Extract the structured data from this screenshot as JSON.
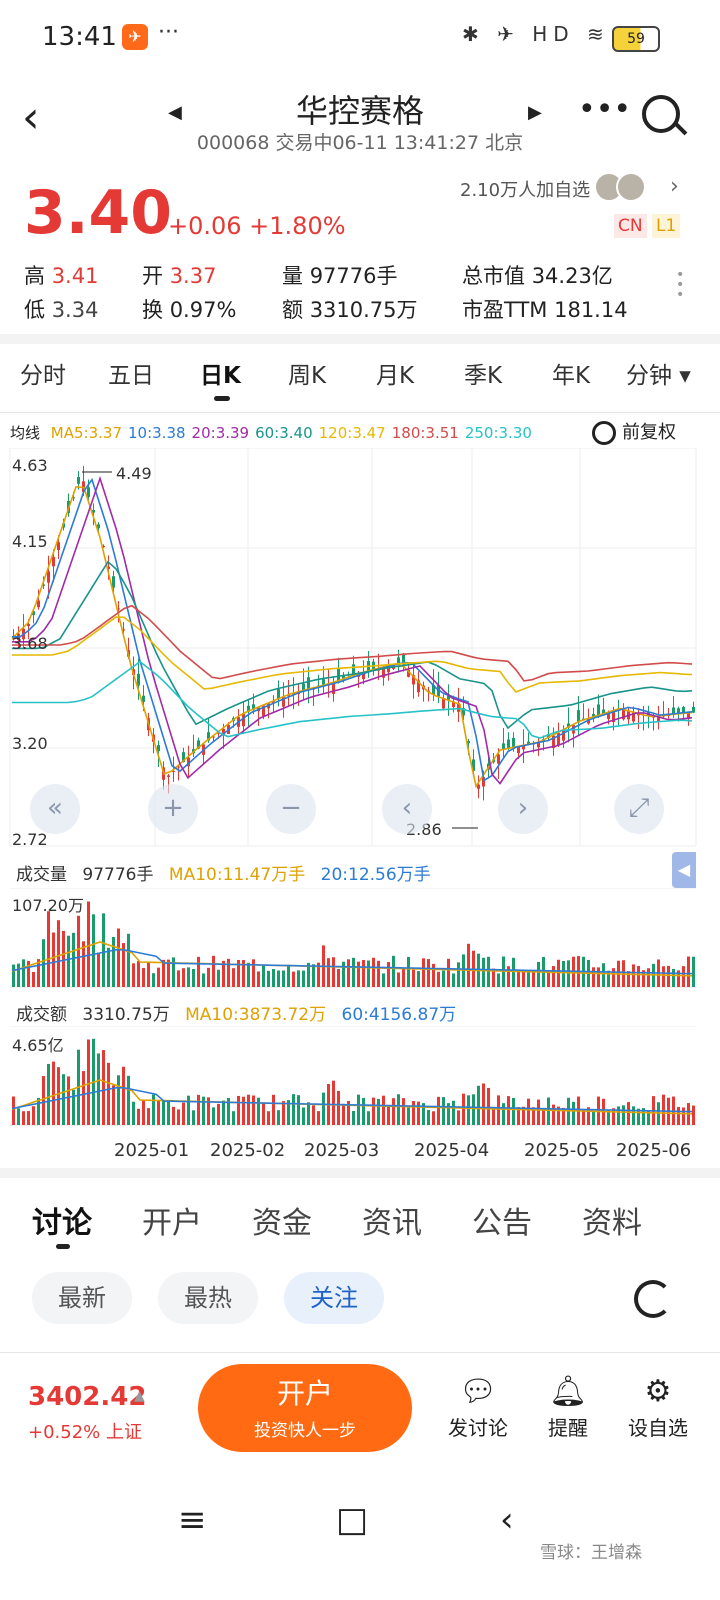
{
  "status_bar": {
    "time": "13:41",
    "dots": "···",
    "icons": "✱ ✈ HD ≋",
    "battery": "59"
  },
  "header": {
    "title": "华控赛格",
    "subtitle": "000068 交易中06-11 13:41:27 北京"
  },
  "quote": {
    "price": "3.40",
    "change": "+0.06 +1.80%",
    "followers": "2.10万人加自选",
    "tag_cn": "CN",
    "tag_l1": "L1",
    "high_label": "高",
    "high": "3.41",
    "low_label": "低",
    "low": "3.34",
    "open_label": "开",
    "open": "3.37",
    "turnover_label": "换",
    "turnover": "0.97%",
    "volume_label": "量",
    "volume": "97776手",
    "amount_label": "额",
    "amount": "3310.75万",
    "mktcap_label": "总市值",
    "mktcap": "34.23亿",
    "pe_label": "市盈TTM",
    "pe": "181.14"
  },
  "period_tabs": [
    "分时",
    "五日",
    "日K",
    "周K",
    "月K",
    "季K",
    "年K",
    "分钟 ▾"
  ],
  "ma_bar": {
    "label": "均线",
    "items": [
      {
        "text": "MA5:3.37",
        "color": "#e0a100"
      },
      {
        "text": "10:3.38",
        "color": "#2b7bd6"
      },
      {
        "text": "20:3.39",
        "color": "#a02aa8"
      },
      {
        "text": "60:3.40",
        "color": "#18948a"
      },
      {
        "text": "120:3.47",
        "color": "#e6b800"
      },
      {
        "text": "180:3.51",
        "color": "#d24b4b"
      },
      {
        "text": "250:3.30",
        "color": "#27c2c8"
      }
    ],
    "adjust": "前复权"
  },
  "kline_axis": {
    "y_top": "4.63",
    "y_2": "4.15",
    "y_3": "3.68",
    "y_4": "3.20",
    "y_bottom": "2.72",
    "max_note": "4.49",
    "min_note": "2.86"
  },
  "zoom_controls": {
    "rewind": "«",
    "plus": "+",
    "minus": "−",
    "left": "‹",
    "right": "›",
    "fullscreen": "⤢"
  },
  "volume_header": {
    "label": "成交量",
    "value": "97776手",
    "ma10": "MA10:11.47万手",
    "ma20": "20:12.56万手",
    "axis_max": "107.20万"
  },
  "amount_header": {
    "label": "成交额",
    "value": "3310.75万",
    "ma10": "MA10:3873.72万",
    "ma60": "60:4156.87万",
    "axis_max": "4.65亿"
  },
  "date_axis": [
    "2025-01",
    "2025-02",
    "2025-03",
    "2025-04",
    "2025-05",
    "2025-06"
  ],
  "content_tabs": [
    "讨论",
    "开户",
    "资金",
    "资讯",
    "公告",
    "资料"
  ],
  "filters": [
    "最新",
    "最热",
    "关注"
  ],
  "footer": {
    "index_value": "3402.42",
    "index_change": "+0.52% 上证",
    "open_account": "开户",
    "open_account_sub": "投资快人一步",
    "post": "发讨论",
    "alert": "提醒",
    "watchlist": "设自选"
  },
  "nav_bar": {
    "menu": "≡",
    "home": "□",
    "back": "‹"
  },
  "watermark": "雪球：王增森"
}
